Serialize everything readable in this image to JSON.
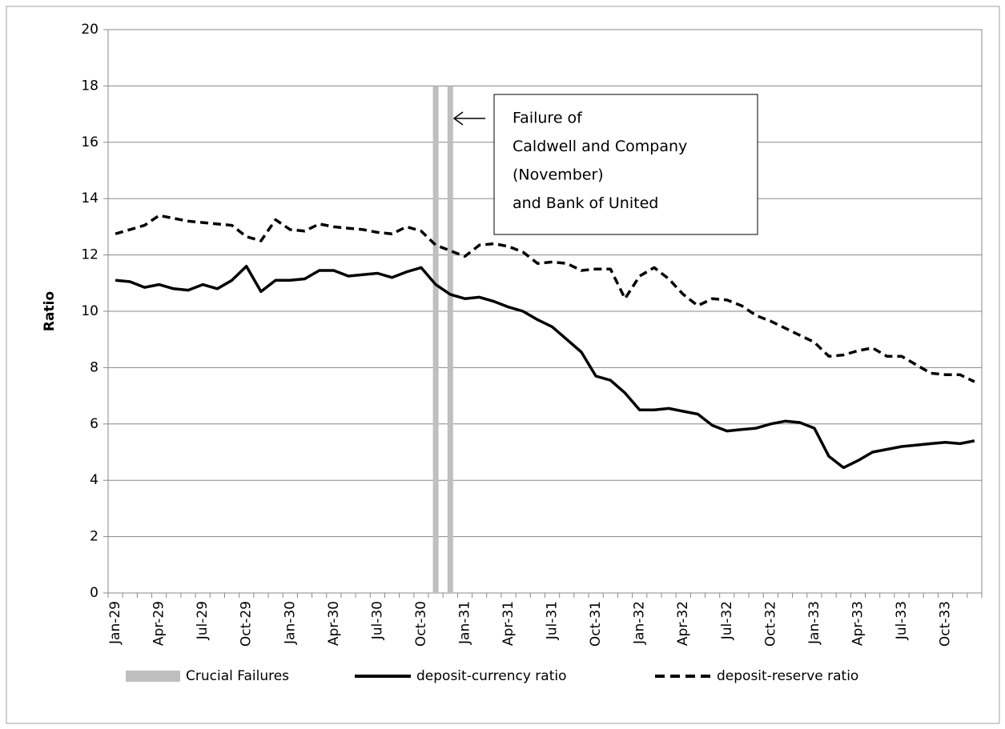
{
  "chart_data": {
    "type": "line",
    "ylabel": "Ratio",
    "categories": [
      "Jan-29",
      null,
      null,
      "Apr-29",
      null,
      null,
      "Jul-29",
      null,
      null,
      "Oct-29",
      null,
      null,
      "Jan-30",
      null,
      null,
      "Apr-30",
      null,
      null,
      "Jul-30",
      null,
      null,
      "Oct-30",
      null,
      null,
      "Jan-31",
      null,
      null,
      "Apr-31",
      null,
      null,
      "Jul-31",
      null,
      null,
      "Oct-31",
      null,
      null,
      "Jan-32",
      null,
      null,
      "Apr-32",
      null,
      null,
      "Jul-32",
      null,
      null,
      "Oct-32",
      null,
      null,
      "Jan-33",
      null,
      null,
      "Apr-33",
      null,
      null,
      "Jul-33",
      null,
      null,
      "Oct-33",
      null,
      null
    ],
    "ylim": [
      0,
      20
    ],
    "yticks": [
      0,
      2,
      4,
      6,
      8,
      10,
      12,
      14,
      16,
      18,
      20
    ],
    "grid": true,
    "legend": "bottom",
    "annotation": [
      "Failure of",
      "Caldwell and Company",
      "(November)",
      "and Bank of United"
    ],
    "series": [
      {
        "name": "Crucial Failures",
        "color": "#bfbfbf",
        "kind": "bar",
        "values": [
          null,
          null,
          null,
          null,
          null,
          null,
          null,
          null,
          null,
          null,
          null,
          null,
          null,
          null,
          null,
          null,
          null,
          null,
          null,
          null,
          null,
          null,
          18,
          18,
          null,
          null,
          null,
          null,
          null,
          null,
          null,
          null,
          null,
          null,
          null,
          null,
          null,
          null,
          null,
          null,
          null,
          null,
          null,
          null,
          null,
          null,
          null,
          null,
          null,
          null,
          null,
          null,
          null,
          null,
          null,
          null,
          null,
          null,
          null,
          null
        ]
      },
      {
        "name": "deposit-currency ratio",
        "color": "#000000",
        "style": "solid",
        "values": [
          11.1,
          11.05,
          10.85,
          10.95,
          10.8,
          10.75,
          10.95,
          10.8,
          11.1,
          11.6,
          10.7,
          11.1,
          11.1,
          11.15,
          11.45,
          11.45,
          11.25,
          11.3,
          11.35,
          11.2,
          11.4,
          11.55,
          10.95,
          10.6,
          10.45,
          10.5,
          10.35,
          10.15,
          10.0,
          9.7,
          9.45,
          9.0,
          8.55,
          7.7,
          7.55,
          7.1,
          6.5,
          6.5,
          6.55,
          6.45,
          6.35,
          5.95,
          5.75,
          5.8,
          5.85,
          6.0,
          6.1,
          6.05,
          5.85,
          4.85,
          4.45,
          4.7,
          5.0,
          5.1,
          5.2,
          5.25,
          5.3,
          5.35,
          5.3,
          5.4
        ]
      },
      {
        "name": "deposit-reserve ratio",
        "color": "#000000",
        "style": "dashed",
        "values": [
          12.75,
          12.9,
          13.05,
          13.4,
          13.3,
          13.2,
          13.15,
          13.1,
          13.05,
          12.65,
          12.5,
          13.25,
          12.9,
          12.85,
          13.1,
          13.0,
          12.95,
          12.9,
          12.8,
          12.75,
          13.0,
          12.85,
          12.35,
          12.15,
          11.95,
          12.35,
          12.4,
          12.3,
          12.1,
          11.7,
          11.75,
          11.7,
          11.45,
          11.5,
          11.5,
          10.45,
          11.25,
          11.55,
          11.15,
          10.6,
          10.2,
          10.45,
          10.4,
          10.2,
          9.85,
          9.65,
          9.4,
          9.15,
          8.9,
          8.4,
          8.45,
          8.6,
          8.7,
          8.4,
          8.4,
          8.1,
          7.8,
          7.75,
          7.75,
          7.5
        ]
      }
    ]
  }
}
